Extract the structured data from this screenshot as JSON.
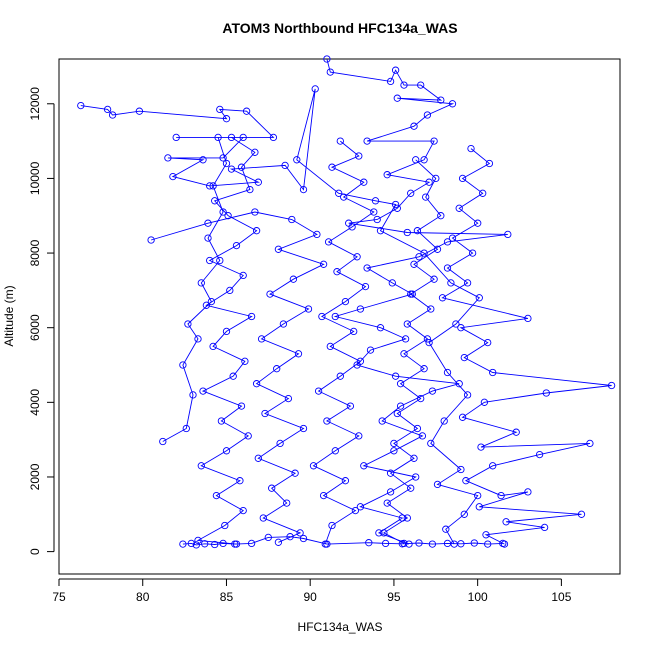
{
  "chart_data": {
    "type": "line",
    "title": "ATOM3 Northbound HFC134a_WAS",
    "xlabel": "HFC134a_WAS",
    "ylabel": "Altitude (m)",
    "xlim": [
      75,
      108.5
    ],
    "ylim": [
      -600,
      13200
    ],
    "xticks": [
      75,
      80,
      85,
      90,
      95,
      100,
      105
    ],
    "yticks": [
      0,
      2000,
      4000,
      6000,
      8000,
      10000,
      12000
    ],
    "grid": false,
    "legend": "none",
    "marker": "open-circle",
    "series": [
      {
        "color": "#0000ff",
        "points": [
          {
            "x": 76.3,
            "y": 11950
          },
          {
            "x": 77.9,
            "y": 11850
          },
          {
            "x": 78.2,
            "y": 11700
          },
          {
            "x": 79.8,
            "y": 11800
          },
          {
            "x": 85.0,
            "y": 11600
          },
          {
            "x": 84.6,
            "y": 11850
          },
          {
            "x": 86.2,
            "y": 11800
          },
          {
            "x": 87.8,
            "y": 11100
          },
          {
            "x": 82.0,
            "y": 11100
          },
          {
            "x": 86.0,
            "y": 11100
          },
          {
            "x": 84.8,
            "y": 10550
          },
          {
            "x": 81.5,
            "y": 10550
          },
          {
            "x": 83.6,
            "y": 10500
          },
          {
            "x": 81.8,
            "y": 10050
          },
          {
            "x": 84.0,
            "y": 9800
          },
          {
            "x": 86.9,
            "y": 9900
          },
          {
            "x": 85.3,
            "y": 10250
          },
          {
            "x": 88.5,
            "y": 10350
          },
          {
            "x": 89.6,
            "y": 9700
          },
          {
            "x": 90.3,
            "y": 12400
          },
          {
            "x": 89.2,
            "y": 10500
          },
          {
            "x": 91.7,
            "y": 9600
          },
          {
            "x": 93.9,
            "y": 9400
          },
          {
            "x": 95.1,
            "y": 9300
          },
          {
            "x": 94.2,
            "y": 8600
          },
          {
            "x": 96.8,
            "y": 8000
          },
          {
            "x": 98.4,
            "y": 7200
          },
          {
            "x": 100.1,
            "y": 6800
          },
          {
            "x": 98.7,
            "y": 6100
          },
          {
            "x": 97.1,
            "y": 5600
          },
          {
            "x": 98.2,
            "y": 4800
          },
          {
            "x": 99.4,
            "y": 4200
          },
          {
            "x": 98.0,
            "y": 3500
          },
          {
            "x": 97.2,
            "y": 2900
          },
          {
            "x": 99.0,
            "y": 2200
          },
          {
            "x": 97.6,
            "y": 1800
          },
          {
            "x": 100.0,
            "y": 1500
          },
          {
            "x": 99.2,
            "y": 1000
          },
          {
            "x": 98.1,
            "y": 600
          },
          {
            "x": 98.6,
            "y": 200
          }
        ]
      },
      {
        "color": "#0000ff",
        "points": [
          {
            "x": 91.0,
            "y": 13200
          },
          {
            "x": 91.2,
            "y": 12850
          },
          {
            "x": 94.8,
            "y": 12600
          },
          {
            "x": 95.1,
            "y": 12900
          },
          {
            "x": 95.6,
            "y": 12500
          },
          {
            "x": 96.6,
            "y": 12500
          },
          {
            "x": 97.8,
            "y": 12100
          },
          {
            "x": 95.2,
            "y": 12150
          },
          {
            "x": 98.5,
            "y": 12000
          },
          {
            "x": 97.0,
            "y": 11700
          },
          {
            "x": 96.2,
            "y": 11400
          },
          {
            "x": 93.4,
            "y": 11000
          },
          {
            "x": 97.4,
            "y": 11000
          },
          {
            "x": 96.8,
            "y": 10500
          },
          {
            "x": 94.6,
            "y": 10100
          },
          {
            "x": 97.1,
            "y": 9900
          },
          {
            "x": 96.0,
            "y": 9600
          },
          {
            "x": 95.2,
            "y": 9200
          },
          {
            "x": 94.0,
            "y": 8900
          },
          {
            "x": 92.3,
            "y": 8800
          },
          {
            "x": 95.8,
            "y": 8550
          },
          {
            "x": 101.8,
            "y": 8500
          },
          {
            "x": 98.2,
            "y": 8300
          },
          {
            "x": 96.5,
            "y": 7900
          },
          {
            "x": 93.4,
            "y": 7600
          },
          {
            "x": 94.9,
            "y": 7200
          },
          {
            "x": 96.1,
            "y": 6900
          },
          {
            "x": 93.0,
            "y": 6500
          },
          {
            "x": 91.5,
            "y": 6300
          },
          {
            "x": 94.2,
            "y": 6000
          },
          {
            "x": 95.7,
            "y": 5700
          },
          {
            "x": 93.6,
            "y": 5400
          },
          {
            "x": 92.8,
            "y": 5000
          },
          {
            "x": 95.1,
            "y": 4700
          },
          {
            "x": 98.9,
            "y": 4500
          },
          {
            "x": 97.3,
            "y": 4300
          },
          {
            "x": 95.4,
            "y": 3900
          },
          {
            "x": 94.3,
            "y": 3500
          },
          {
            "x": 96.7,
            "y": 3100
          },
          {
            "x": 95.0,
            "y": 2700
          },
          {
            "x": 93.2,
            "y": 2300
          },
          {
            "x": 96.3,
            "y": 2000
          },
          {
            "x": 94.8,
            "y": 1600
          },
          {
            "x": 93.0,
            "y": 1200
          },
          {
            "x": 95.5,
            "y": 900
          },
          {
            "x": 94.1,
            "y": 500
          },
          {
            "x": 95.9,
            "y": 200
          }
        ]
      },
      {
        "color": "#0000ff",
        "points": [
          {
            "x": 85.3,
            "y": 11100
          },
          {
            "x": 86.7,
            "y": 10700
          },
          {
            "x": 85.9,
            "y": 10300
          },
          {
            "x": 86.4,
            "y": 9700
          },
          {
            "x": 84.3,
            "y": 9400
          },
          {
            "x": 85.1,
            "y": 9000
          },
          {
            "x": 86.8,
            "y": 8600
          },
          {
            "x": 85.6,
            "y": 8200
          },
          {
            "x": 84.0,
            "y": 7800
          },
          {
            "x": 86.0,
            "y": 7400
          },
          {
            "x": 85.2,
            "y": 7000
          },
          {
            "x": 83.8,
            "y": 6600
          },
          {
            "x": 86.5,
            "y": 6300
          },
          {
            "x": 85.0,
            "y": 5900
          },
          {
            "x": 84.2,
            "y": 5500
          },
          {
            "x": 86.1,
            "y": 5100
          },
          {
            "x": 85.4,
            "y": 4700
          },
          {
            "x": 83.6,
            "y": 4300
          },
          {
            "x": 85.9,
            "y": 3900
          },
          {
            "x": 84.7,
            "y": 3500
          },
          {
            "x": 86.3,
            "y": 3100
          },
          {
            "x": 85.0,
            "y": 2700
          },
          {
            "x": 83.5,
            "y": 2300
          },
          {
            "x": 85.8,
            "y": 1900
          },
          {
            "x": 84.4,
            "y": 1500
          },
          {
            "x": 86.0,
            "y": 1100
          },
          {
            "x": 84.9,
            "y": 700
          },
          {
            "x": 83.3,
            "y": 300
          },
          {
            "x": 85.6,
            "y": 200
          }
        ]
      },
      {
        "color": "#0000ff",
        "points": [
          {
            "x": 80.5,
            "y": 8350
          },
          {
            "x": 83.9,
            "y": 8800
          },
          {
            "x": 86.7,
            "y": 9100
          },
          {
            "x": 88.9,
            "y": 8900
          },
          {
            "x": 90.4,
            "y": 8500
          },
          {
            "x": 88.1,
            "y": 8100
          },
          {
            "x": 90.8,
            "y": 7700
          },
          {
            "x": 89.0,
            "y": 7300
          },
          {
            "x": 87.6,
            "y": 6900
          },
          {
            "x": 89.9,
            "y": 6500
          },
          {
            "x": 88.4,
            "y": 6100
          },
          {
            "x": 87.1,
            "y": 5700
          },
          {
            "x": 89.3,
            "y": 5300
          },
          {
            "x": 88.0,
            "y": 4900
          },
          {
            "x": 86.8,
            "y": 4500
          },
          {
            "x": 88.7,
            "y": 4100
          },
          {
            "x": 87.3,
            "y": 3700
          },
          {
            "x": 89.6,
            "y": 3300
          },
          {
            "x": 88.2,
            "y": 2900
          },
          {
            "x": 86.9,
            "y": 2500
          },
          {
            "x": 89.1,
            "y": 2100
          },
          {
            "x": 87.7,
            "y": 1700
          },
          {
            "x": 88.6,
            "y": 1300
          },
          {
            "x": 87.2,
            "y": 900
          },
          {
            "x": 89.4,
            "y": 500
          },
          {
            "x": 88.1,
            "y": 250
          }
        ]
      },
      {
        "color": "#0000ff",
        "points": [
          {
            "x": 91.8,
            "y": 11000
          },
          {
            "x": 92.9,
            "y": 10600
          },
          {
            "x": 91.3,
            "y": 10300
          },
          {
            "x": 93.2,
            "y": 9900
          },
          {
            "x": 92.0,
            "y": 9500
          },
          {
            "x": 93.8,
            "y": 9100
          },
          {
            "x": 92.5,
            "y": 8700
          },
          {
            "x": 91.1,
            "y": 8300
          },
          {
            "x": 92.8,
            "y": 7900
          },
          {
            "x": 91.6,
            "y": 7500
          },
          {
            "x": 93.3,
            "y": 7100
          },
          {
            "x": 92.1,
            "y": 6700
          },
          {
            "x": 90.7,
            "y": 6300
          },
          {
            "x": 92.6,
            "y": 5900
          },
          {
            "x": 91.2,
            "y": 5500
          },
          {
            "x": 93.0,
            "y": 5100
          },
          {
            "x": 91.8,
            "y": 4700
          },
          {
            "x": 90.5,
            "y": 4300
          },
          {
            "x": 92.4,
            "y": 3900
          },
          {
            "x": 91.0,
            "y": 3500
          },
          {
            "x": 92.9,
            "y": 3100
          },
          {
            "x": 91.5,
            "y": 2700
          },
          {
            "x": 90.2,
            "y": 2300
          },
          {
            "x": 92.1,
            "y": 1900
          },
          {
            "x": 90.8,
            "y": 1500
          },
          {
            "x": 92.7,
            "y": 1100
          },
          {
            "x": 91.3,
            "y": 700
          },
          {
            "x": 90.9,
            "y": 200
          }
        ]
      },
      {
        "color": "#0000ff",
        "points": [
          {
            "x": 99.6,
            "y": 10800
          },
          {
            "x": 100.7,
            "y": 10400
          },
          {
            "x": 99.1,
            "y": 10000
          },
          {
            "x": 100.3,
            "y": 9600
          },
          {
            "x": 98.9,
            "y": 9200
          },
          {
            "x": 100.0,
            "y": 8800
          },
          {
            "x": 98.5,
            "y": 8400
          },
          {
            "x": 99.7,
            "y": 8000
          },
          {
            "x": 98.2,
            "y": 7600
          },
          {
            "x": 99.4,
            "y": 7200
          },
          {
            "x": 97.9,
            "y": 6800
          },
          {
            "x": 103.0,
            "y": 6250
          },
          {
            "x": 99.0,
            "y": 6000
          },
          {
            "x": 100.6,
            "y": 5600
          },
          {
            "x": 99.2,
            "y": 5200
          },
          {
            "x": 100.9,
            "y": 4800
          },
          {
            "x": 108.0,
            "y": 4450
          },
          {
            "x": 104.1,
            "y": 4250
          },
          {
            "x": 100.4,
            "y": 4000
          },
          {
            "x": 99.1,
            "y": 3600
          },
          {
            "x": 102.3,
            "y": 3200
          },
          {
            "x": 100.2,
            "y": 2800
          },
          {
            "x": 106.7,
            "y": 2900
          },
          {
            "x": 103.7,
            "y": 2600
          },
          {
            "x": 100.9,
            "y": 2300
          },
          {
            "x": 99.3,
            "y": 1900
          },
          {
            "x": 101.4,
            "y": 1500
          },
          {
            "x": 103.0,
            "y": 1600
          },
          {
            "x": 100.1,
            "y": 1200
          },
          {
            "x": 106.2,
            "y": 1000
          },
          {
            "x": 101.7,
            "y": 800
          },
          {
            "x": 104.0,
            "y": 650
          },
          {
            "x": 100.5,
            "y": 450
          },
          {
            "x": 101.6,
            "y": 200
          }
        ]
      },
      {
        "color": "#0000ff",
        "points": [
          {
            "x": 82.4,
            "y": 200
          },
          {
            "x": 82.9,
            "y": 220
          },
          {
            "x": 83.2,
            "y": 180
          },
          {
            "x": 83.7,
            "y": 210
          },
          {
            "x": 84.3,
            "y": 190
          },
          {
            "x": 84.8,
            "y": 220
          },
          {
            "x": 85.5,
            "y": 200
          },
          {
            "x": 86.5,
            "y": 220
          },
          {
            "x": 87.5,
            "y": 380
          },
          {
            "x": 88.8,
            "y": 400
          },
          {
            "x": 89.6,
            "y": 350
          },
          {
            "x": 91.0,
            "y": 200
          },
          {
            "x": 93.5,
            "y": 240
          },
          {
            "x": 94.5,
            "y": 220
          },
          {
            "x": 95.5,
            "y": 210
          },
          {
            "x": 96.5,
            "y": 230
          },
          {
            "x": 97.3,
            "y": 200
          },
          {
            "x": 98.2,
            "y": 220
          },
          {
            "x": 99.0,
            "y": 210
          },
          {
            "x": 99.8,
            "y": 230
          },
          {
            "x": 100.6,
            "y": 200
          },
          {
            "x": 101.5,
            "y": 220
          }
        ]
      },
      {
        "color": "#0000ff",
        "points": [
          {
            "x": 81.2,
            "y": 2950
          },
          {
            "x": 82.6,
            "y": 3300
          },
          {
            "x": 83.0,
            "y": 4200
          },
          {
            "x": 82.4,
            "y": 5000
          },
          {
            "x": 83.3,
            "y": 5700
          },
          {
            "x": 82.7,
            "y": 6100
          },
          {
            "x": 84.1,
            "y": 6700
          },
          {
            "x": 83.5,
            "y": 7200
          },
          {
            "x": 84.6,
            "y": 7800
          },
          {
            "x": 83.9,
            "y": 8400
          },
          {
            "x": 84.8,
            "y": 9100
          },
          {
            "x": 84.2,
            "y": 9800
          },
          {
            "x": 85.0,
            "y": 10400
          },
          {
            "x": 84.5,
            "y": 11100
          }
        ]
      },
      {
        "color": "#0000ff",
        "points": [
          {
            "x": 96.3,
            "y": 10500
          },
          {
            "x": 97.5,
            "y": 10000
          },
          {
            "x": 96.9,
            "y": 9500
          },
          {
            "x": 97.8,
            "y": 9000
          },
          {
            "x": 96.4,
            "y": 8600
          },
          {
            "x": 97.6,
            "y": 8100
          },
          {
            "x": 96.2,
            "y": 7700
          },
          {
            "x": 97.4,
            "y": 7300
          },
          {
            "x": 96.0,
            "y": 6900
          },
          {
            "x": 97.2,
            "y": 6500
          },
          {
            "x": 95.8,
            "y": 6100
          },
          {
            "x": 97.0,
            "y": 5700
          },
          {
            "x": 95.6,
            "y": 5300
          },
          {
            "x": 96.8,
            "y": 4900
          },
          {
            "x": 95.4,
            "y": 4500
          },
          {
            "x": 96.6,
            "y": 4100
          },
          {
            "x": 95.2,
            "y": 3700
          },
          {
            "x": 96.4,
            "y": 3300
          },
          {
            "x": 95.0,
            "y": 2900
          },
          {
            "x": 96.2,
            "y": 2500
          },
          {
            "x": 94.8,
            "y": 2100
          },
          {
            "x": 96.0,
            "y": 1700
          },
          {
            "x": 94.6,
            "y": 1300
          },
          {
            "x": 95.8,
            "y": 900
          },
          {
            "x": 94.4,
            "y": 500
          },
          {
            "x": 95.6,
            "y": 220
          }
        ]
      }
    ]
  }
}
